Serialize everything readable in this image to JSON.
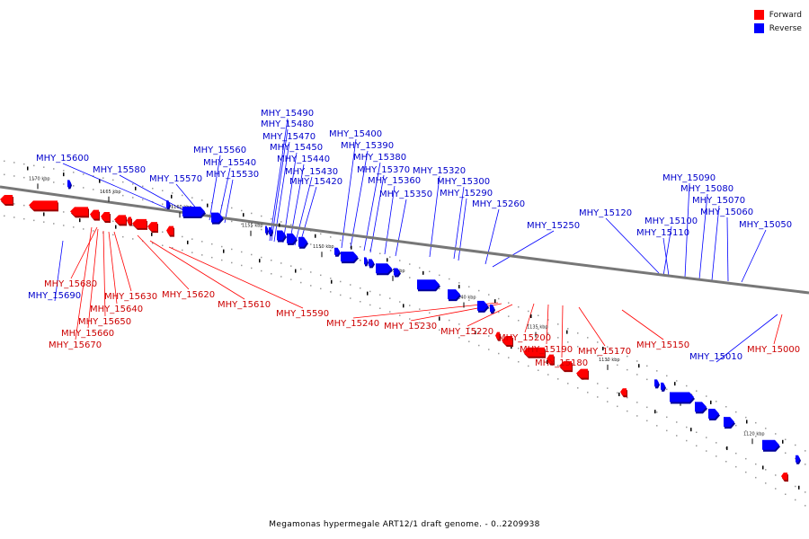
{
  "legend": {
    "forward": {
      "label": "Forward",
      "color": "#ff0000"
    },
    "reverse": {
      "label": "Reverse",
      "color": "#0000ff"
    }
  },
  "caption": "Megamonas hypermegale ART12/1 draft genome. - 0..2209938",
  "scale_labels": [
    "1170 kbp",
    "1165 kbp",
    "1160 kbp",
    "1155 kbp",
    "1150 kbp",
    "1145 kbp",
    "1140 kbp",
    "1135 kbp",
    "1130 kbp",
    "1125 kbp",
    "1120 kbp"
  ],
  "reverse_genes": [
    "MHY_15600",
    "MHY_15580",
    "MHY_15570",
    "MHY_15560",
    "MHY_15540",
    "MHY_15530",
    "MHY_15490",
    "MHY_15480",
    "MHY_15470",
    "MHY_15450",
    "MHY_15440",
    "MHY_15430",
    "MHY_15420",
    "MHY_15400",
    "MHY_15390",
    "MHY_15380",
    "MHY_15370",
    "MHY_15360",
    "MHY_15350",
    "MHY_15320",
    "MHY_15300",
    "MHY_15290",
    "MHY_15260",
    "MHY_15250",
    "MHY_15120",
    "MHY_15100",
    "MHY_15110",
    "MHY_15090",
    "MHY_15080",
    "MHY_15070",
    "MHY_15060",
    "MHY_15050",
    "MHY_15690",
    "MHY_15010"
  ],
  "forward_genes": [
    "MHY_15680",
    "MHY_15630",
    "MHY_15640",
    "MHY_15650",
    "MHY_15660",
    "MHY_15670",
    "MHY_15620",
    "MHY_15610",
    "MHY_15590",
    "MHY_15240",
    "MHY_15230",
    "MHY_15220",
    "MHY_15200",
    "MHY_15190",
    "MHY_15180",
    "MHY_15170",
    "MHY_15150",
    "MHY_15000"
  ]
}
